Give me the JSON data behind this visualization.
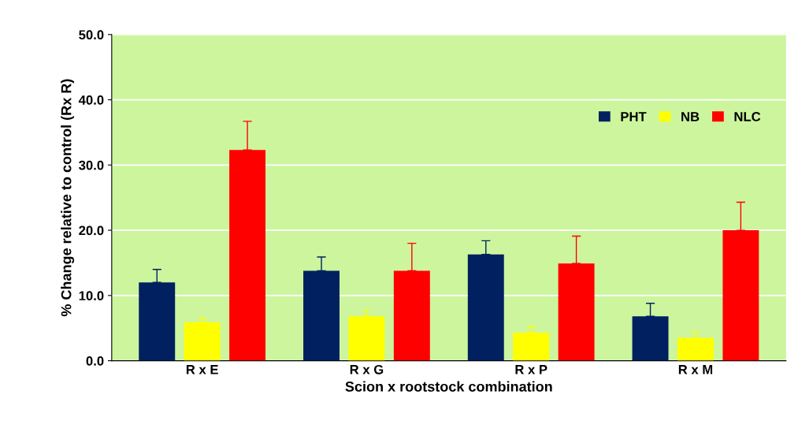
{
  "chart_data": {
    "type": "bar",
    "xlabel": "Scion x rootstock combination",
    "ylabel": "% Change relative to control (Rx R)",
    "categories": [
      "R x E",
      "R x G",
      "R x P",
      "R x M"
    ],
    "series": [
      {
        "name": "PHT",
        "color": "#002060",
        "values": [
          12.0,
          13.8,
          16.3,
          6.8
        ],
        "errors": [
          [
            12.0,
            14.0
          ],
          [
            13.8,
            15.9
          ],
          [
            16.3,
            18.4
          ],
          [
            6.8,
            8.8
          ]
        ]
      },
      {
        "name": "NB",
        "color": "#ffff00",
        "values": [
          5.9,
          6.8,
          4.3,
          3.5
        ],
        "errors": [
          [
            5.9,
            6.5
          ],
          [
            6.8,
            7.7
          ],
          [
            4.3,
            5.2
          ],
          [
            3.5,
            4.4
          ]
        ]
      },
      {
        "name": "NLC",
        "color": "#ff0000",
        "values": [
          32.3,
          13.8,
          14.9,
          20.0
        ],
        "errors": [
          [
            32.3,
            36.7
          ],
          [
            13.8,
            18.0
          ],
          [
            14.9,
            19.1
          ],
          [
            20.0,
            24.3
          ]
        ]
      }
    ],
    "ylim": [
      0,
      50
    ],
    "yticks": [
      {
        "value": 0,
        "label": "0.0"
      },
      {
        "value": 10,
        "label": "10.0"
      },
      {
        "value": 20,
        "label": "20.0"
      },
      {
        "value": 30,
        "label": "30.0"
      },
      {
        "value": 40,
        "label": "40.0"
      },
      {
        "value": 50,
        "label": "50.0"
      }
    ],
    "grid": "y",
    "legend": "top right"
  }
}
